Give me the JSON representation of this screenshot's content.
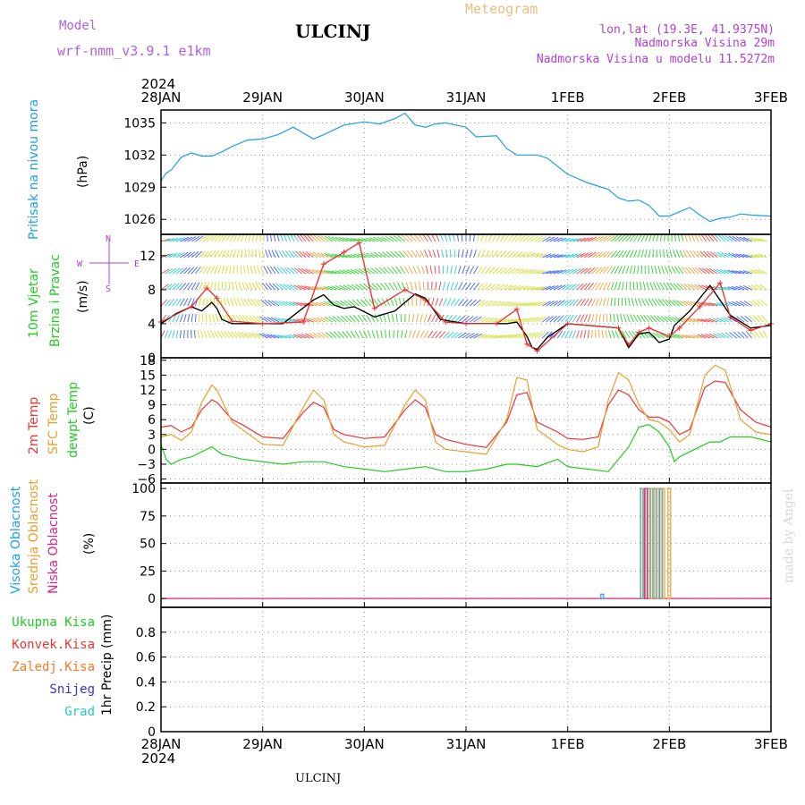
{
  "header": {
    "model_label": "Model",
    "model_name": "wrf-nmm_v3.9.1 e1km",
    "station": "ULCINJ",
    "chart_title": "Meteogram",
    "lonlat": "lon,lat (19.3E, 41.9375N)",
    "elevation": "Nadmorska Visina 29m",
    "model_elevation": "Nadmorska Visina u modelu 11.5272m",
    "year": "2024",
    "footer_station": "ULCINJ",
    "credit": "made by Angel"
  },
  "axis": {
    "days": [
      "28JAN",
      "29JAN",
      "30JAN",
      "31JAN",
      "1FEB",
      "2FEB",
      "3FEB"
    ],
    "year": "2024"
  },
  "compass": {
    "n": "N",
    "s": "S",
    "w": "W",
    "e": "E"
  },
  "panel_labels": {
    "pressure": {
      "title": "Pritisak na nivou mora",
      "unit": "(hPa)"
    },
    "wind": {
      "line1": "10m Vjetar",
      "line2": "Brzina i Pravac",
      "unit": "(m/s)"
    },
    "temp": {
      "t2m": "2m Temp",
      "sfc": "SFC Temp",
      "dew": "dewpt Temp",
      "unit": "(C)"
    },
    "cloud": {
      "high": "Visoka Oblacnost",
      "mid": "Srednja Oblacnost",
      "low": "Niska Oblacnost",
      "unit": "(%)"
    },
    "precip": {
      "total": "Ukupna Kisa",
      "conv": "Konvek.Kisa",
      "frz": "Zaledj.Kisa",
      "snow": "Snijeg",
      "grad": "Grad",
      "unit": "1hr Precip (mm)"
    }
  },
  "colors": {
    "pressure": "#1ea0e6",
    "t2m": "#ee3333",
    "sfc": "#e6a030",
    "dew": "#22cc22",
    "wind_speed": "#000000",
    "wind_alt": "#ee3333",
    "cloud_high": "#1ea0e6",
    "cloud_mid": "#e6a030",
    "cloud_low": "#dd2288",
    "precip_total": "#22cc22",
    "precip_conv": "#ee3333",
    "precip_frz": "#ff7722",
    "precip_snow": "#3333dd",
    "precip_grad": "#22cccc",
    "title_gold": "#e6c080",
    "purple": "#a040d0"
  },
  "chart_data": [
    {
      "type": "line",
      "panel": "pressure",
      "ylabel": "(hPa)",
      "ylim": [
        1024.6,
        1036.2
      ],
      "yticks": [
        1026,
        1029,
        1032,
        1035
      ],
      "x_unit": "days since 28JAN 00 UTC",
      "series": [
        {
          "name": "Pritisak na nivou mora",
          "x": [
            0,
            0.05,
            0.1,
            0.2,
            0.3,
            0.4,
            0.5,
            0.6,
            0.7,
            0.85,
            1.0,
            1.15,
            1.3,
            1.5,
            1.6,
            1.8,
            2.0,
            2.15,
            2.3,
            2.4,
            2.5,
            2.6,
            2.7,
            2.8,
            3.0,
            3.1,
            3.3,
            3.4,
            3.5,
            3.7,
            3.8,
            4.0,
            4.2,
            4.4,
            4.5,
            4.6,
            4.7,
            4.8,
            4.9,
            5.0,
            5.1,
            5.2,
            5.3,
            5.4,
            5.5,
            5.6,
            5.7,
            5.8,
            6.0
          ],
          "y": [
            1029.6,
            1030.3,
            1030.6,
            1031.8,
            1032.2,
            1031.9,
            1031.9,
            1032.3,
            1032.8,
            1033.4,
            1033.5,
            1033.9,
            1034.6,
            1033.5,
            1033.9,
            1034.8,
            1035.1,
            1034.9,
            1035.4,
            1035.9,
            1034.8,
            1034.6,
            1034.9,
            1035.0,
            1034.6,
            1033.7,
            1033.8,
            1032.6,
            1032.0,
            1032.0,
            1031.7,
            1030.2,
            1029.4,
            1028.8,
            1028.0,
            1027.7,
            1027.8,
            1027.3,
            1026.3,
            1026.3,
            1026.7,
            1027.1,
            1026.4,
            1025.8,
            1026.1,
            1026.2,
            1026.5,
            1026.4,
            1026.3
          ]
        }
      ]
    },
    {
      "type": "line",
      "panel": "wind",
      "ylabel": "(m/s)",
      "ylim": [
        0,
        14.5
      ],
      "yticks": [
        0,
        4,
        8,
        12
      ],
      "series": [
        {
          "name": "Brzina",
          "x": [
            0,
            0.15,
            0.3,
            0.4,
            0.5,
            0.55,
            0.6,
            0.7,
            0.8,
            1.0,
            1.2,
            1.5,
            1.6,
            1.7,
            1.8,
            1.9,
            2.1,
            2.3,
            2.5,
            2.6,
            2.75,
            3.0,
            3.2,
            3.4,
            3.5,
            3.6,
            3.65,
            3.7,
            3.8,
            4.0,
            4.5,
            4.6,
            4.7,
            4.8,
            4.9,
            5.0,
            5.05,
            5.2,
            5.4,
            5.6,
            5.8,
            6.0
          ],
          "y": [
            4.0,
            5.2,
            6.0,
            5.5,
            6.5,
            5.8,
            4.5,
            4.0,
            4.0,
            4.0,
            4.0,
            6.8,
            7.4,
            6.2,
            5.8,
            6.0,
            4.8,
            5.5,
            7.5,
            7.0,
            4.5,
            4.0,
            4.0,
            4.0,
            4.2,
            2.5,
            1.2,
            1.0,
            2.4,
            4.0,
            3.5,
            1.2,
            2.8,
            3.0,
            1.8,
            2.2,
            3.8,
            5.5,
            8.5,
            5.0,
            3.5,
            3.8
          ]
        },
        {
          "name": "Udari",
          "x": [
            0,
            0.3,
            0.45,
            0.55,
            0.7,
            1.0,
            1.4,
            1.6,
            1.8,
            1.95,
            2.1,
            2.4,
            2.6,
            2.8,
            3.0,
            3.3,
            3.5,
            3.6,
            3.7,
            4.0,
            4.5,
            4.6,
            4.7,
            4.8,
            5.0,
            5.1,
            5.3,
            5.5,
            5.6,
            5.8,
            6.0
          ],
          "y": [
            4.2,
            6.0,
            8.2,
            7.0,
            4.3,
            4.0,
            4.2,
            11.0,
            12.4,
            13.5,
            5.8,
            8.0,
            6.8,
            4.2,
            4.0,
            4.0,
            5.7,
            1.6,
            0.8,
            4.0,
            3.5,
            1.5,
            3.0,
            3.5,
            2.5,
            3.5,
            6.0,
            8.8,
            4.8,
            3.2,
            4.0
          ]
        }
      ],
      "wind_barbs_shown": true
    },
    {
      "type": "line",
      "panel": "temp",
      "ylabel": "(C)",
      "ylim": [
        -6.8,
        18.5
      ],
      "yticks": [
        -6,
        -3,
        0,
        3,
        6,
        9,
        12,
        15,
        18
      ],
      "series": [
        {
          "name": "2m Temp",
          "x": [
            0,
            0.1,
            0.2,
            0.3,
            0.4,
            0.5,
            0.55,
            0.7,
            0.8,
            1.0,
            1.2,
            1.4,
            1.5,
            1.6,
            1.7,
            1.8,
            2.0,
            2.2,
            2.4,
            2.5,
            2.6,
            2.7,
            2.8,
            3.0,
            3.2,
            3.4,
            3.5,
            3.6,
            3.7,
            3.9,
            4.0,
            4.15,
            4.3,
            4.4,
            4.5,
            4.6,
            4.7,
            4.8,
            4.9,
            5.0,
            5.1,
            5.2,
            5.35,
            5.45,
            5.55,
            5.7,
            5.85,
            6.0
          ],
          "y": [
            4.5,
            4.8,
            3.5,
            4.5,
            8.0,
            10.0,
            9.5,
            6.0,
            5.0,
            2.5,
            2.2,
            7.5,
            9.5,
            8.5,
            4.0,
            3.0,
            2.2,
            2.5,
            8.0,
            10.0,
            8.5,
            3.0,
            2.0,
            1.0,
            0.4,
            5.5,
            11.0,
            11.5,
            5.5,
            3.5,
            2.2,
            2.0,
            2.5,
            9.0,
            12.0,
            11.0,
            8.0,
            6.5,
            6.5,
            5.5,
            3.0,
            4.0,
            12.5,
            13.8,
            13.5,
            8.0,
            5.5,
            4.5
          ]
        },
        {
          "name": "SFC Temp",
          "x": [
            0,
            0.1,
            0.2,
            0.3,
            0.4,
            0.5,
            0.55,
            0.7,
            0.8,
            1.0,
            1.2,
            1.4,
            1.5,
            1.6,
            1.7,
            1.8,
            2.0,
            2.2,
            2.4,
            2.5,
            2.6,
            2.7,
            2.8,
            3.0,
            3.2,
            3.4,
            3.5,
            3.6,
            3.7,
            3.9,
            4.0,
            4.15,
            4.3,
            4.4,
            4.5,
            4.6,
            4.7,
            4.8,
            4.9,
            5.0,
            5.1,
            5.2,
            5.35,
            5.45,
            5.55,
            5.7,
            5.85,
            6.0
          ],
          "y": [
            2.5,
            3.0,
            1.8,
            3.5,
            9.5,
            13.0,
            12.0,
            5.5,
            4.0,
            1.0,
            0.8,
            8.5,
            12.0,
            10.0,
            3.0,
            1.5,
            0.5,
            0.8,
            9.0,
            12.0,
            10.0,
            1.5,
            0.0,
            -0.5,
            -1.0,
            6.0,
            14.5,
            14.0,
            4.0,
            1.0,
            0.0,
            -0.5,
            0.5,
            10.0,
            15.5,
            14.0,
            9.0,
            6.0,
            5.5,
            4.0,
            1.5,
            3.0,
            15.0,
            17.0,
            16.0,
            6.0,
            3.5,
            3.0
          ]
        },
        {
          "name": "dewpt Temp",
          "x": [
            0,
            0.05,
            0.1,
            0.2,
            0.3,
            0.4,
            0.5,
            0.6,
            0.8,
            1.0,
            1.2,
            1.4,
            1.6,
            1.8,
            2.0,
            2.2,
            2.4,
            2.6,
            2.8,
            3.0,
            3.2,
            3.4,
            3.5,
            3.7,
            3.9,
            4.0,
            4.2,
            4.4,
            4.6,
            4.7,
            4.8,
            4.9,
            5.0,
            5.05,
            5.1,
            5.2,
            5.3,
            5.4,
            5.5,
            5.6,
            5.8,
            6.0
          ],
          "y": [
            1.0,
            -2.0,
            -3.0,
            -2.0,
            -1.5,
            -0.5,
            0.5,
            -1.0,
            -2.0,
            -2.5,
            -3.0,
            -2.5,
            -2.5,
            -3.5,
            -4.0,
            -4.5,
            -4.0,
            -3.5,
            -4.5,
            -4.5,
            -4.0,
            -3.0,
            -3.0,
            -3.5,
            -2.0,
            -3.5,
            -4.0,
            -4.5,
            0.5,
            4.5,
            5.0,
            3.5,
            0.5,
            -2.5,
            -1.5,
            -0.5,
            0.5,
            1.5,
            1.5,
            2.5,
            2.5,
            1.5
          ]
        }
      ]
    },
    {
      "type": "bar",
      "panel": "cloud",
      "ylabel": "(%)",
      "ylim": [
        -8,
        105
      ],
      "yticks": [
        0,
        25,
        50,
        75,
        100
      ],
      "series": [
        {
          "name": "Visoka Oblacnost",
          "x": [
            4.34,
            4.73,
            4.8,
            4.86,
            4.92
          ],
          "values": [
            4,
            100,
            100,
            100,
            100
          ]
        },
        {
          "name": "Srednja Oblacnost",
          "x": [
            4.75,
            4.82,
            4.88,
            4.94,
            5.0
          ],
          "values": [
            100,
            100,
            100,
            100,
            100
          ]
        },
        {
          "name": "Niska Oblacnost",
          "x": [
            4.77
          ],
          "values": [
            100
          ]
        }
      ]
    },
    {
      "type": "bar",
      "panel": "precip",
      "ylabel": "1hr Precip (mm)",
      "ylim": [
        0,
        1.0
      ],
      "yticks": [
        0,
        0.2,
        0.4,
        0.6,
        0.8
      ],
      "series": [
        {
          "name": "Ukupna Kisa",
          "x": [],
          "values": []
        }
      ]
    }
  ]
}
